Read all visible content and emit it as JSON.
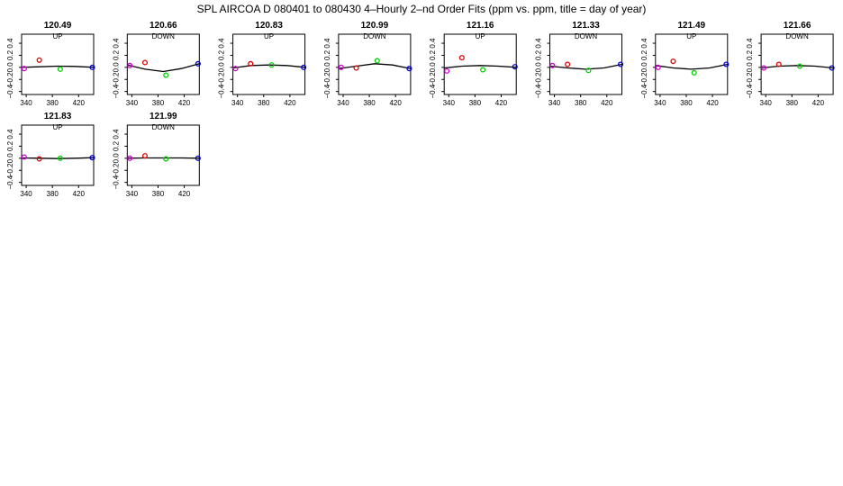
{
  "figure_title": "SPL   AIRCOA D   080401 to 080430   4–Hourly 2–nd Order Fits (ppm vs. ppm, title = day of year)",
  "colors": {
    "pt1": "#d000d0",
    "pt2": "#e00000",
    "pt3": "#00d000",
    "pt4": "#0000d0",
    "line": "#000000",
    "frame": "#000000"
  },
  "chart_data": [
    {
      "type": "scatter",
      "title": "120.49",
      "subtitle": "UP",
      "xlim": [
        333,
        443
      ],
      "ylim": [
        -0.45,
        0.55
      ],
      "xticks": [
        340,
        380,
        420
      ],
      "xticklabels": [
        "340",
        "380",
        "420"
      ],
      "yticks": [
        -0.4,
        -0.2,
        0.0,
        0.2,
        0.4
      ],
      "yticklabels": [
        "−0.4",
        "−0.2",
        "0.0",
        "0.2",
        "0.4"
      ],
      "points": [
        {
          "x": 337,
          "y": -0.02
        },
        {
          "x": 360,
          "y": 0.12
        },
        {
          "x": 392,
          "y": -0.03
        },
        {
          "x": 441,
          "y": 0.0
        }
      ],
      "fit": [
        0.0,
        0.01,
        0.02,
        0.015,
        0.0
      ]
    },
    {
      "type": "scatter",
      "title": "120.66",
      "subtitle": "DOWN",
      "xlim": [
        333,
        443
      ],
      "ylim": [
        -0.45,
        0.55
      ],
      "xticks": [
        340,
        380,
        420
      ],
      "xticklabels": [
        "340",
        "380",
        "420"
      ],
      "yticks": [
        -0.4,
        -0.2,
        0.0,
        0.2,
        0.4
      ],
      "yticklabels": [
        "−0.4",
        "−0.2",
        "0.0",
        "0.2",
        "0.4"
      ],
      "points": [
        {
          "x": 337,
          "y": 0.03
        },
        {
          "x": 360,
          "y": 0.08
        },
        {
          "x": 392,
          "y": -0.13
        },
        {
          "x": 441,
          "y": 0.06
        }
      ],
      "fit": [
        0.04,
        -0.03,
        -0.07,
        -0.02,
        0.06
      ]
    },
    {
      "type": "scatter",
      "title": "120.83",
      "subtitle": "UP",
      "xlim": [
        333,
        443
      ],
      "ylim": [
        -0.45,
        0.55
      ],
      "xticks": [
        340,
        380,
        420
      ],
      "xticklabels": [
        "340",
        "380",
        "420"
      ],
      "yticks": [
        -0.4,
        -0.2,
        0.0,
        0.2,
        0.4
      ],
      "yticklabels": [
        "−0.4",
        "−0.2",
        "0.0",
        "0.2",
        "0.4"
      ],
      "points": [
        {
          "x": 337,
          "y": -0.02
        },
        {
          "x": 360,
          "y": 0.06
        },
        {
          "x": 392,
          "y": 0.04
        },
        {
          "x": 441,
          "y": 0.0
        }
      ],
      "fit": [
        -0.01,
        0.03,
        0.04,
        0.03,
        0.0
      ]
    },
    {
      "type": "scatter",
      "title": "120.99",
      "subtitle": "DOWN",
      "xlim": [
        333,
        443
      ],
      "ylim": [
        -0.45,
        0.55
      ],
      "xticks": [
        340,
        380,
        420
      ],
      "xticklabels": [
        "340",
        "380",
        "420"
      ],
      "yticks": [
        -0.4,
        -0.2,
        0.0,
        0.2,
        0.4
      ],
      "yticklabels": [
        "−0.4",
        "−0.2",
        "0.0",
        "0.2",
        "0.4"
      ],
      "points": [
        {
          "x": 337,
          "y": 0.0
        },
        {
          "x": 360,
          "y": -0.01
        },
        {
          "x": 392,
          "y": 0.11
        },
        {
          "x": 441,
          "y": -0.02
        }
      ],
      "fit": [
        -0.02,
        0.02,
        0.06,
        0.04,
        -0.02
      ]
    },
    {
      "type": "scatter",
      "title": "121.16",
      "subtitle": "UP",
      "xlim": [
        333,
        443
      ],
      "ylim": [
        -0.45,
        0.55
      ],
      "xticks": [
        340,
        380,
        420
      ],
      "xticklabels": [
        "340",
        "380",
        "420"
      ],
      "yticks": [
        -0.4,
        -0.2,
        0.0,
        0.2,
        0.4
      ],
      "yticklabels": [
        "−0.4",
        "−0.2",
        "0.0",
        "0.2",
        "0.4"
      ],
      "points": [
        {
          "x": 337,
          "y": -0.06
        },
        {
          "x": 360,
          "y": 0.16
        },
        {
          "x": 392,
          "y": -0.04
        },
        {
          "x": 441,
          "y": 0.01
        }
      ],
      "fit": [
        -0.01,
        0.02,
        0.03,
        0.02,
        0.0
      ]
    },
    {
      "type": "scatter",
      "title": "121.33",
      "subtitle": "DOWN",
      "xlim": [
        333,
        443
      ],
      "ylim": [
        -0.45,
        0.55
      ],
      "xticks": [
        340,
        380,
        420
      ],
      "xticklabels": [
        "340",
        "380",
        "420"
      ],
      "yticks": [
        -0.4,
        -0.2,
        0.0,
        0.2,
        0.4
      ],
      "yticklabels": [
        "−0.4",
        "−0.2",
        "0.0",
        "0.2",
        "0.4"
      ],
      "points": [
        {
          "x": 337,
          "y": 0.03
        },
        {
          "x": 360,
          "y": 0.05
        },
        {
          "x": 392,
          "y": -0.05
        },
        {
          "x": 441,
          "y": 0.05
        }
      ],
      "fit": [
        0.02,
        -0.01,
        -0.03,
        -0.01,
        0.05
      ]
    },
    {
      "type": "scatter",
      "title": "121.49",
      "subtitle": "UP",
      "xlim": [
        333,
        443
      ],
      "ylim": [
        -0.45,
        0.55
      ],
      "xticks": [
        340,
        380,
        420
      ],
      "xticklabels": [
        "340",
        "380",
        "420"
      ],
      "yticks": [
        -0.4,
        -0.2,
        0.0,
        0.2,
        0.4
      ],
      "yticklabels": [
        "−0.4",
        "−0.2",
        "0.0",
        "0.2",
        "0.4"
      ],
      "points": [
        {
          "x": 337,
          "y": 0.0
        },
        {
          "x": 360,
          "y": 0.1
        },
        {
          "x": 392,
          "y": -0.09
        },
        {
          "x": 441,
          "y": 0.05
        }
      ],
      "fit": [
        0.03,
        -0.01,
        -0.03,
        -0.01,
        0.05
      ]
    },
    {
      "type": "scatter",
      "title": "121.66",
      "subtitle": "DOWN",
      "xlim": [
        333,
        443
      ],
      "ylim": [
        -0.45,
        0.55
      ],
      "xticks": [
        340,
        380,
        420
      ],
      "xticklabels": [
        "340",
        "380",
        "420"
      ],
      "yticks": [
        -0.4,
        -0.2,
        0.0,
        0.2,
        0.4
      ],
      "yticklabels": [
        "−0.4",
        "−0.2",
        "0.0",
        "0.2",
        "0.4"
      ],
      "points": [
        {
          "x": 337,
          "y": -0.01
        },
        {
          "x": 360,
          "y": 0.05
        },
        {
          "x": 392,
          "y": 0.02
        },
        {
          "x": 441,
          "y": -0.01
        }
      ],
      "fit": [
        -0.01,
        0.02,
        0.03,
        0.02,
        -0.01
      ]
    },
    {
      "type": "scatter",
      "title": "121.83",
      "subtitle": "UP",
      "xlim": [
        333,
        443
      ],
      "ylim": [
        -0.45,
        0.55
      ],
      "xticks": [
        340,
        380,
        420
      ],
      "xticklabels": [
        "340",
        "380",
        "420"
      ],
      "yticks": [
        -0.4,
        -0.2,
        0.0,
        0.2,
        0.4
      ],
      "yticklabels": [
        "−0.4",
        "−0.2",
        "0.0",
        "0.2",
        "0.4"
      ],
      "points": [
        {
          "x": 337,
          "y": 0.02
        },
        {
          "x": 360,
          "y": -0.01
        },
        {
          "x": 392,
          "y": 0.0
        },
        {
          "x": 441,
          "y": 0.01
        }
      ],
      "fit": [
        0.005,
        0.0,
        -0.005,
        0.0,
        0.01
      ]
    },
    {
      "type": "scatter",
      "title": "121.99",
      "subtitle": "DOWN",
      "xlim": [
        333,
        443
      ],
      "ylim": [
        -0.45,
        0.55
      ],
      "xticks": [
        340,
        380,
        420
      ],
      "xticklabels": [
        "340",
        "380",
        "420"
      ],
      "yticks": [
        -0.4,
        -0.2,
        0.0,
        0.2,
        0.4
      ],
      "yticklabels": [
        "−0.4",
        "−0.2",
        "0.0",
        "0.2",
        "0.4"
      ],
      "points": [
        {
          "x": 337,
          "y": 0.0
        },
        {
          "x": 360,
          "y": 0.04
        },
        {
          "x": 392,
          "y": -0.01
        },
        {
          "x": 441,
          "y": 0.0
        }
      ],
      "fit": [
        0.0,
        0.005,
        0.005,
        0.005,
        0.0
      ]
    }
  ]
}
